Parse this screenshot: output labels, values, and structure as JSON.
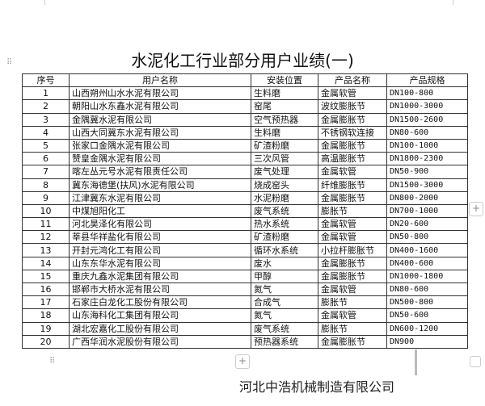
{
  "title": "水泥化工行业部分用户业绩(一)",
  "table": {
    "headers": [
      "序号",
      "用户名称",
      "安装位置",
      "产品名称",
      "产品规格"
    ],
    "rows": [
      [
        "1",
        "山西朔州山水水泥有限公司",
        "生料磨",
        "金属软管",
        "DN100-800"
      ],
      [
        "2",
        "朝阳山水东鑫水泥有限公司",
        "窑尾",
        "波纹膨胀节",
        "DN1000-3000"
      ],
      [
        "3",
        "金隅冀水泥有限公司",
        "空气预热器",
        "金属膨胀节",
        "DN1500-2600"
      ],
      [
        "4",
        "山西大同冀东水泥有限公司",
        "生料磨",
        "不锈钢软连接",
        "DN80-600"
      ],
      [
        "5",
        "张家口金隅水泥有限公司",
        "矿渣粉磨",
        "金属膨胀节",
        "DN100-1000"
      ],
      [
        "6",
        "赞皇金隅水泥有限公司",
        "三次风管",
        "高温膨胀节",
        "DN1800-2300"
      ],
      [
        "7",
        "喀左丛元号水泥有限责任公司",
        "废气处理",
        "金属软管",
        "DN50-900"
      ],
      [
        "8",
        "冀东海德堡(扶风)水泥有限公司",
        "烧成窑头",
        "纤维膨胀节",
        "DN1500-3000"
      ],
      [
        "9",
        "江津冀东水泥有限公司",
        "水泥粉磨",
        "金属膨胀节",
        "DN800-2000"
      ],
      [
        "10",
        "中煤旭阳化工",
        "废气系统",
        "膨胀节",
        "DN700-1000"
      ],
      [
        "11",
        "河北昊泽化有限公司",
        "热水系统",
        "金属软管",
        "DN20-600"
      ],
      [
        "12",
        "莘县华祥盐化有限公司",
        "矿渣粉磨",
        "金属软管",
        "DN50-800"
      ],
      [
        "13",
        "开封元鸿化工有限公司",
        "循环水系统",
        "小拉杆膨胀节",
        "DN400-1600"
      ],
      [
        "14",
        "山东东华水泥有限公司",
        "废水",
        "金属膨胀节",
        "DN400-600"
      ],
      [
        "15",
        "重庆九鑫水泥集团有限公司",
        "甲醇",
        "金属膨胀节",
        "DN1000-1800"
      ],
      [
        "16",
        "邯郸市大桥水泥有限公司",
        "氮气",
        "金属软管",
        "DN80-600"
      ],
      [
        "17",
        "石家庄白龙化工股份有限公司",
        "合成气",
        "膨胀节",
        "DN500-800"
      ],
      [
        "18",
        "山东海科化工集团有限公司",
        "氮气",
        "金属软管",
        "DN50-600"
      ],
      [
        "19",
        "湖北宏嘉化工股份有限公司",
        "废气系统",
        "膨胀节",
        "DN600-1200"
      ],
      [
        "20",
        "广西华润水泥股份有限公司",
        "预热器系统",
        "金属膨胀节",
        "DN900"
      ]
    ]
  },
  "footer": "河北中浩机械制造有限公司",
  "controls": {
    "add": "+",
    "drag": "⠿"
  }
}
